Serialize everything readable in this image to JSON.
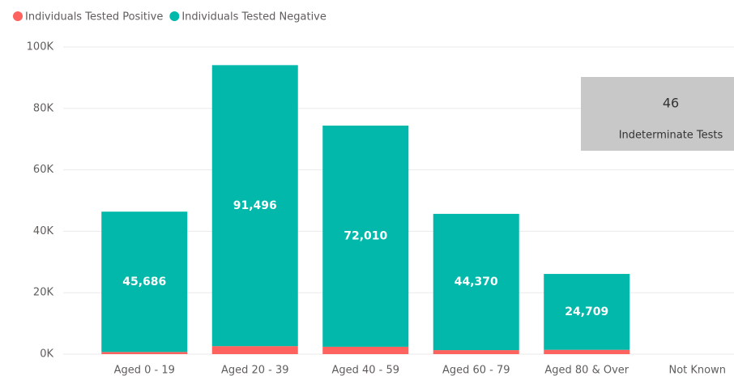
{
  "chart_data": {
    "type": "stacked_bar",
    "categories": [
      "Aged 0 - 19",
      "Aged 20 - 39",
      "Aged 40 - 59",
      "Aged 60 - 79",
      "Aged 80 & Over",
      "Not Known"
    ],
    "series": [
      {
        "name": "Individuals Tested Positive",
        "color": "#fd625e",
        "values": [
          700,
          2600,
          2400,
          1300,
          1400,
          null
        ]
      },
      {
        "name": "Individuals Tested Negative",
        "color": "#01b8aa",
        "values": [
          45686,
          91496,
          72010,
          44370,
          24709,
          null
        ],
        "value_labels": [
          "45,686",
          "91,496",
          "72,010",
          "44,370",
          "24,709",
          null
        ]
      }
    ],
    "ylim": [
      0,
      100000
    ],
    "yticks": [
      {
        "value": 0,
        "label": "0K"
      },
      {
        "value": 20000,
        "label": "20K"
      },
      {
        "value": 40000,
        "label": "40K"
      },
      {
        "value": 60000,
        "label": "60K"
      },
      {
        "value": 80000,
        "label": "80K"
      },
      {
        "value": 100000,
        "label": "100K"
      }
    ],
    "grid": true,
    "legend": "top-left"
  },
  "card": {
    "value": 46,
    "label": "Indeterminate Tests"
  }
}
